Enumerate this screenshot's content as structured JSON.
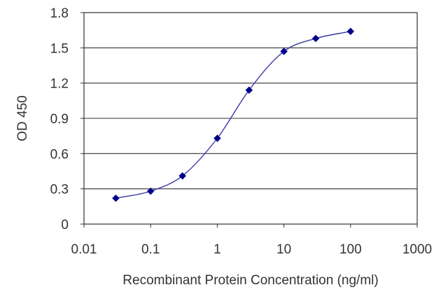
{
  "chart_data": {
    "type": "line",
    "xscale": "log",
    "xlabel": "Recombinant Protein Concentration (ng/ml)",
    "ylabel": "OD 450",
    "xlim": [
      0.01,
      1000
    ],
    "ylim": [
      0,
      1.8
    ],
    "x_ticks": [
      "0.01",
      "0.1",
      "1",
      "10",
      "100",
      "1000"
    ],
    "y_ticks": [
      "0",
      "0.3",
      "0.6",
      "0.9",
      "1.2",
      "1.5",
      "1.8"
    ],
    "grid": "horizontal",
    "legend": "none",
    "series": [
      {
        "x": [
          0.03,
          0.1,
          0.3,
          1,
          3,
          10,
          30,
          100
        ],
        "y": [
          0.22,
          0.28,
          0.41,
          0.73,
          1.14,
          1.47,
          1.58,
          1.64
        ],
        "color": "#00008b"
      }
    ]
  }
}
